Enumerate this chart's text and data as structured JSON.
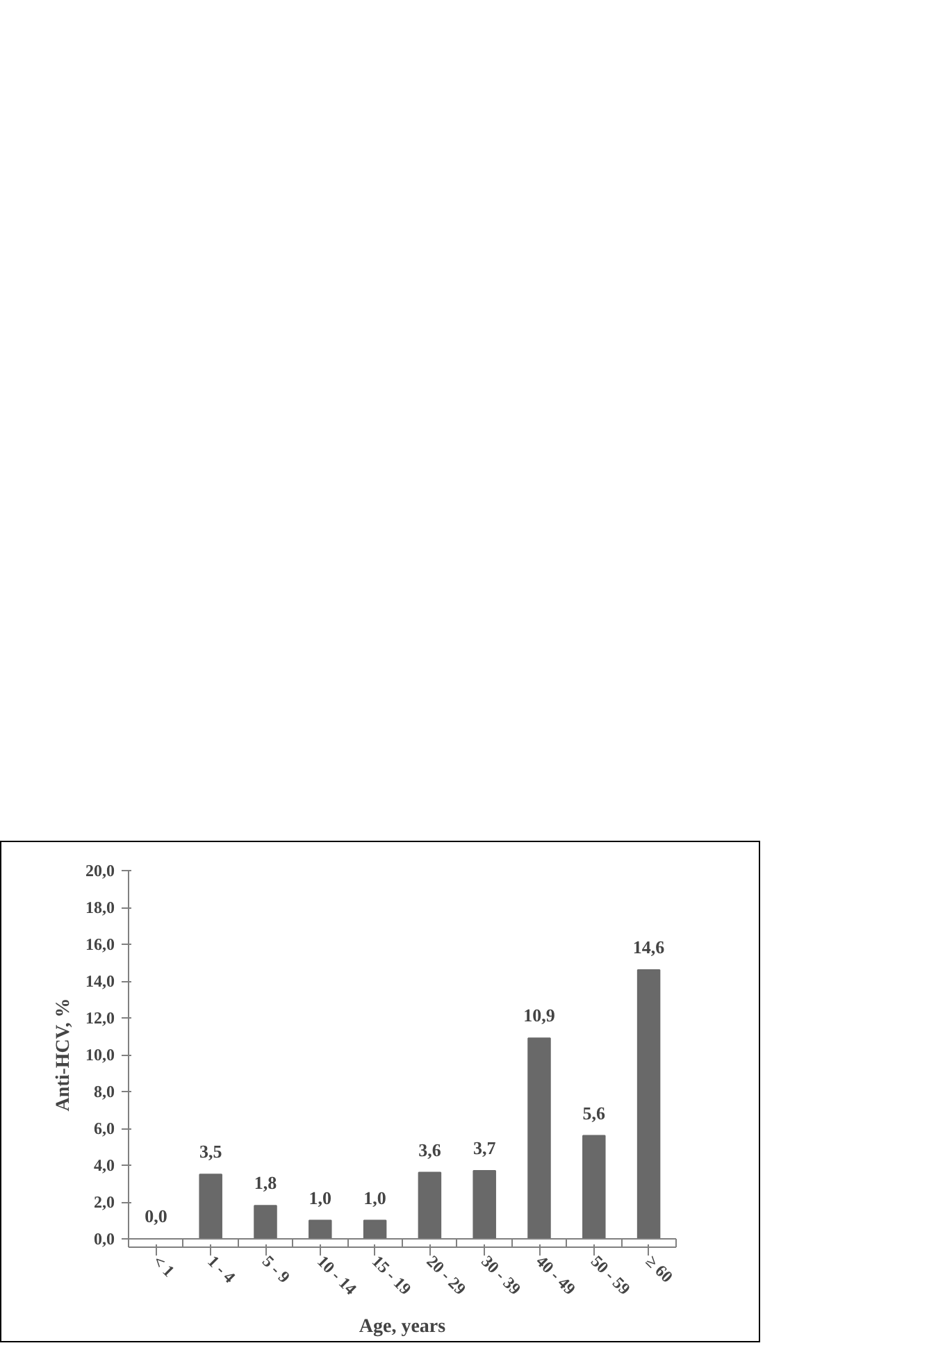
{
  "chart_data": {
    "type": "bar",
    "xlabel": "Age, years",
    "ylabel": "Anti-HCV, %",
    "categories": [
      "< 1",
      "1 - 4",
      "5 - 9",
      "10 - 14",
      "15 - 19",
      "20 - 29",
      "30 - 39",
      "40 - 49",
      "50 - 59",
      "≥ 60"
    ],
    "values": [
      0.0,
      3.5,
      1.8,
      1.0,
      1.0,
      3.6,
      3.7,
      10.9,
      5.6,
      14.6
    ],
    "value_labels": [
      "0,0",
      "3,5",
      "1,8",
      "1,0",
      "1,0",
      "3,6",
      "3,7",
      "10,9",
      "5,6",
      "14,6"
    ],
    "color": "#696969",
    "ylim": [
      0,
      20
    ],
    "yticks": [
      {
        "value": 0,
        "label": "0,0"
      },
      {
        "value": 2,
        "label": "2,0"
      },
      {
        "value": 4,
        "label": "4,0"
      },
      {
        "value": 6,
        "label": "6,0"
      },
      {
        "value": 8,
        "label": "8,0"
      },
      {
        "value": 10,
        "label": "10,0"
      },
      {
        "value": 12,
        "label": "12,0"
      },
      {
        "value": 14,
        "label": "14,0"
      },
      {
        "value": 16,
        "label": "16,0"
      },
      {
        "value": 18,
        "label": "18,0"
      },
      {
        "value": 20,
        "label": "20,0"
      }
    ],
    "grid": false
  }
}
